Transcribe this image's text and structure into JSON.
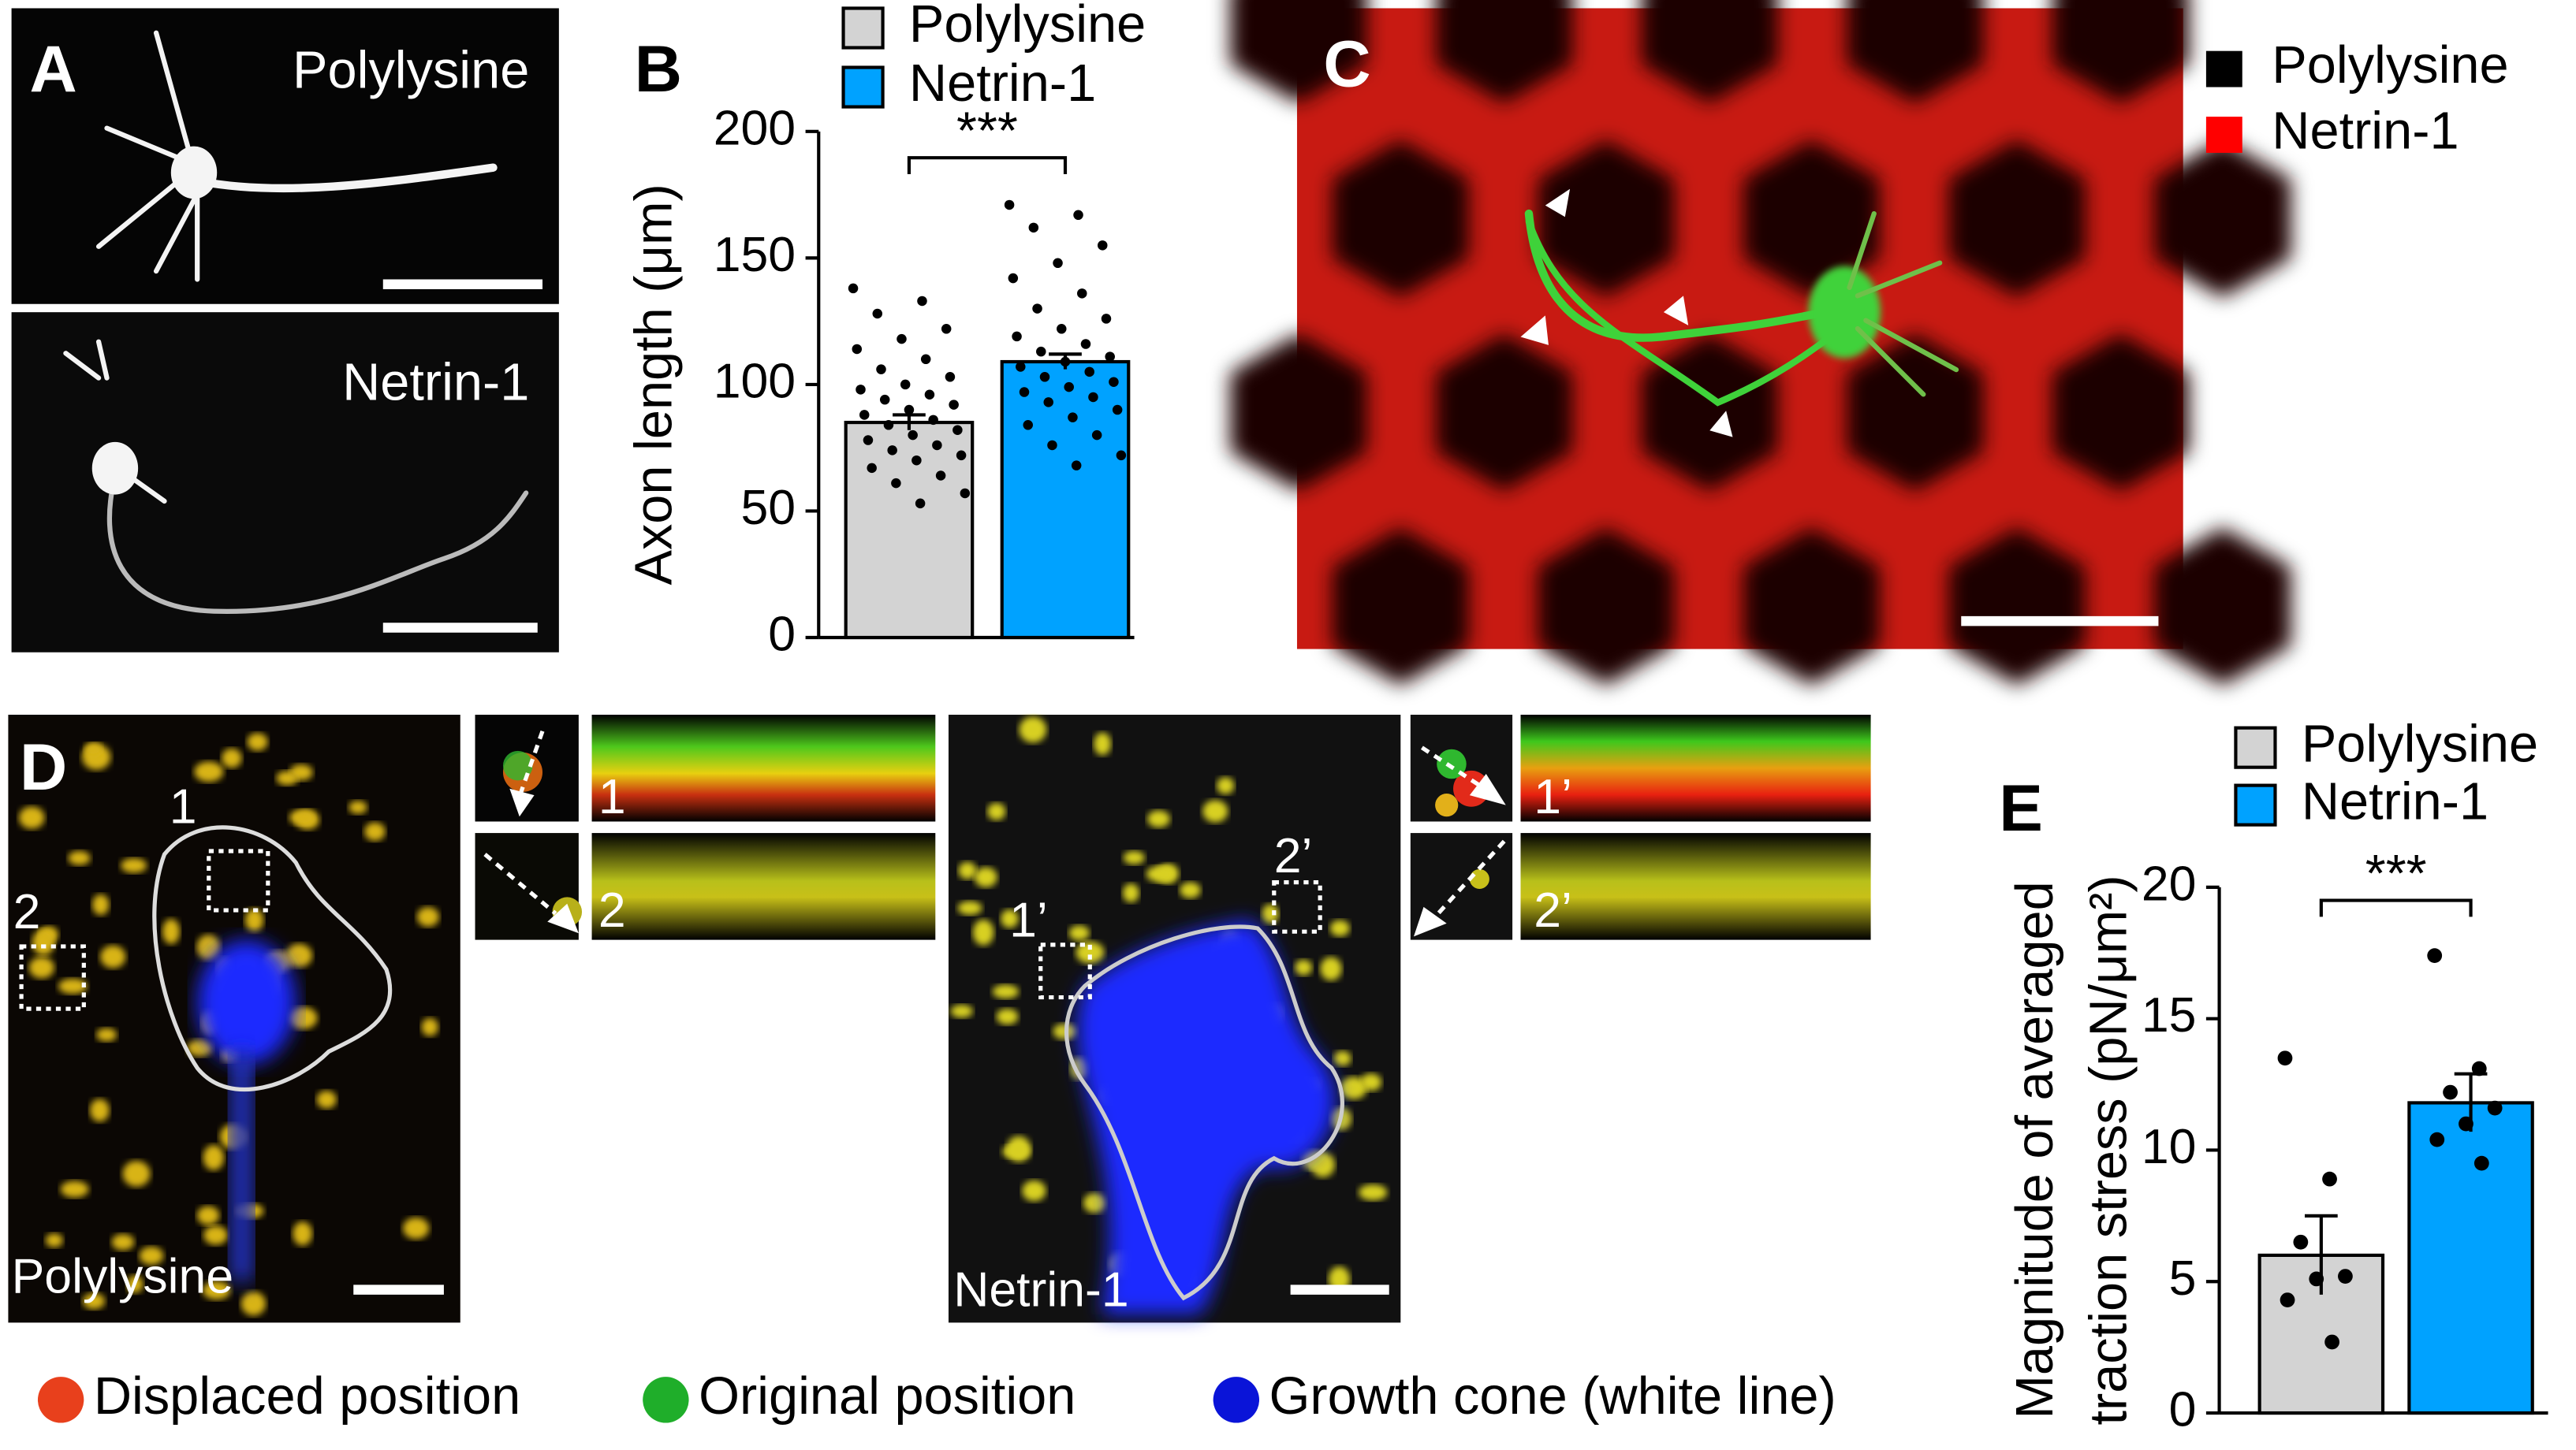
{
  "panels": {
    "A": {
      "label": "A",
      "top_label": "Polylysine",
      "bottom_label": "Netrin-1"
    },
    "C": {
      "label": "C",
      "legend": [
        {
          "name": "Polylysine",
          "color": "#000000"
        },
        {
          "name": "Netrin-1",
          "color": "#ff0000"
        }
      ]
    },
    "D": {
      "label": "D",
      "left_roi_1": "1",
      "left_roi_2": "2",
      "left_caption": "Polylysine",
      "left_inset_1": "1",
      "left_inset_2": "2",
      "right_roi_1": "1’",
      "right_roi_2": "2’",
      "right_caption": "Netrin-1",
      "right_inset_1": "1’",
      "right_inset_2": "2’",
      "legend": [
        {
          "name": "Displaced position",
          "color": "#e8401c"
        },
        {
          "name": "Original position",
          "color": "#1fae2a"
        },
        {
          "name": "Growth cone (white line)",
          "color": "#0a14d8"
        }
      ]
    }
  },
  "chart_data": [
    {
      "type": "bar",
      "panel_label": "B",
      "ylabel": [
        "Axon length (μm)"
      ],
      "categories": [
        "Polylysine",
        "Netrin-1"
      ],
      "values": [
        85,
        109
      ],
      "errors": [
        3,
        3
      ],
      "colors": [
        "#d3d3d3",
        "#00a2ff"
      ],
      "significance": "***",
      "points": [
        [
          138,
          133,
          128,
          122,
          118,
          114,
          110,
          106,
          103,
          100,
          98,
          96,
          94,
          92,
          90,
          88,
          86,
          84,
          82,
          80,
          78,
          76,
          74,
          72,
          70,
          67,
          64,
          61,
          57,
          53
        ],
        [
          171,
          167,
          162,
          155,
          148,
          142,
          136,
          130,
          126,
          122,
          119,
          116,
          113,
          111,
          109,
          107,
          105,
          103,
          101,
          99,
          97,
          95,
          93,
          90,
          87,
          84,
          80,
          76,
          72,
          68
        ]
      ],
      "ylim": [
        0,
        200
      ],
      "yticks": [
        0,
        50,
        100,
        150,
        200
      ]
    },
    {
      "type": "bar",
      "panel_label": "E",
      "ylabel": [
        "Magnitude of averaged",
        "traction stress (pN/μm²)"
      ],
      "categories": [
        "Polylysine",
        "Netrin-1"
      ],
      "values": [
        6,
        11.8
      ],
      "errors": [
        1.5,
        1.1
      ],
      "colors": [
        "#d3d3d3",
        "#00a2ff"
      ],
      "significance": "***",
      "points": [
        [
          13.5,
          8.9,
          6.5,
          5.2,
          5.1,
          4.3,
          2.7
        ],
        [
          17.4,
          13.1,
          12.2,
          11.6,
          11,
          10.4,
          9.5
        ]
      ],
      "ylim": [
        0,
        20
      ],
      "yticks": [
        0,
        5,
        10,
        15,
        20
      ]
    }
  ]
}
